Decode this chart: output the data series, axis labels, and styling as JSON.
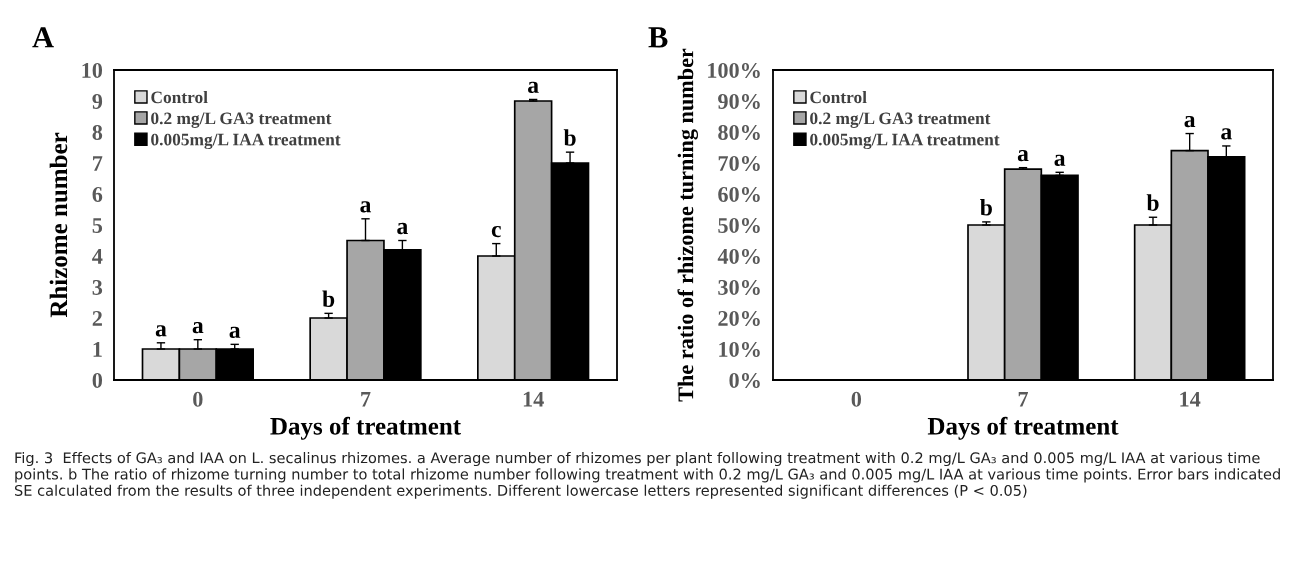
{
  "chart_data": [
    {
      "type": "bar",
      "title": "A",
      "xlabel": "Days of treatment",
      "ylabel": "Rhizome number",
      "categories": [
        "0",
        "7",
        "14"
      ],
      "series": [
        {
          "name": "Control",
          "color": "#d9d9d9",
          "values": [
            1,
            2,
            4
          ],
          "errors": [
            0.2,
            0.15,
            0.4
          ],
          "value_labels": [
            "a",
            "b",
            "c"
          ]
        },
        {
          "name": "0.2 mg/L GA3 treatment",
          "color": "#a6a6a6",
          "values": [
            1,
            4.5,
            9
          ],
          "errors": [
            0.3,
            0.7,
            0.05
          ],
          "value_labels": [
            "a",
            "a",
            "a"
          ]
        },
        {
          "name": "0.005mg/L IAA treatment",
          "color": "#000000",
          "values": [
            1,
            4.2,
            7
          ],
          "errors": [
            0.15,
            0.3,
            0.35
          ],
          "value_labels": [
            "a",
            "a",
            "b"
          ]
        }
      ],
      "ylim": [
        0,
        10
      ],
      "yticks": [
        0,
        1,
        2,
        3,
        4,
        5,
        6,
        7,
        8,
        9,
        10
      ],
      "legend": "top left",
      "grid": false,
      "annotations": [
        "Fig. 3  Effects of GA₃ and IAA on L. secalinus rhizomes. a Average number of rhizomes per plant following treatment with 0.2 mg/L GA₃ and 0.005 mg/L IAA at various time points. b The ratio of rhizome turning number to total rhizome number following treatment with 0.2 mg/L GA₃ and 0.005 mg/L IAA at various time points. Error bars indicated SE calculated from the results of three independent experiments. Different lowercase letters represented significant differences (P < 0.05)"
      ]
    },
    {
      "type": "bar",
      "title": "B",
      "xlabel": "Days of treatment",
      "ylabel": "The ratio of rhizome turning number",
      "categories": [
        "0",
        "7",
        "14"
      ],
      "series": [
        {
          "name": "Control",
          "color": "#d9d9d9",
          "values": [
            null,
            50,
            50
          ],
          "errors": [
            null,
            1,
            2.5
          ],
          "value_labels": [
            null,
            "b",
            "b"
          ]
        },
        {
          "name": "0.2 mg/L GA3 treatment",
          "color": "#a6a6a6",
          "values": [
            null,
            68,
            74
          ],
          "errors": [
            null,
            0.5,
            5.5
          ],
          "value_labels": [
            null,
            "a",
            "a"
          ]
        },
        {
          "name": "0.005mg/L IAA treatment",
          "color": "#000000",
          "values": [
            null,
            66,
            72
          ],
          "errors": [
            null,
            1,
            3.5
          ],
          "value_labels": [
            null,
            "a",
            "a"
          ]
        }
      ],
      "ylim": [
        0,
        100
      ],
      "yticks": [
        {
          "value": 0,
          "label": "0%"
        },
        {
          "value": 10,
          "label": "10%"
        },
        {
          "value": 20,
          "label": "20%"
        },
        {
          "value": 30,
          "label": "30%"
        },
        {
          "value": 40,
          "label": "40%"
        },
        {
          "value": 50,
          "label": "50%"
        },
        {
          "value": 60,
          "label": "60%"
        },
        {
          "value": 70,
          "label": "70%"
        },
        {
          "value": 80,
          "label": "80%"
        },
        {
          "value": 90,
          "label": "90%"
        },
        {
          "value": 100,
          "label": "100%"
        }
      ],
      "legend": "top left",
      "grid": false
    }
  ]
}
